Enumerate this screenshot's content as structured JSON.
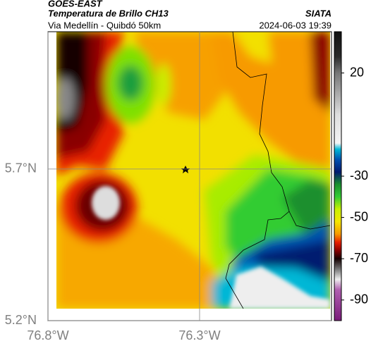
{
  "header": {
    "title": "GOES-EAST",
    "subtitle": "Temperatura de Brillo CH13",
    "region": "Via Medellín - Quibdó 50km",
    "source": "SIATA",
    "timestamp": "2024-06-03 19:39"
  },
  "map": {
    "xlim": [
      -76.8,
      -75.865
    ],
    "ylim": [
      5.2,
      6.153
    ],
    "xticks": [
      {
        "value": -76.8,
        "label": "76.8°W"
      },
      {
        "value": -76.3,
        "label": "76.3°W"
      }
    ],
    "yticks": [
      {
        "value": 5.2,
        "label": "5.2°N"
      },
      {
        "value": 5.7,
        "label": "5.7°N"
      }
    ],
    "grid": true
  },
  "colorbar": {
    "lim": [
      -100,
      40
    ],
    "ticks": [
      20,
      -30,
      -50,
      -70,
      -90
    ],
    "colors": [
      {
        "value": 40,
        "color": "#111111"
      },
      {
        "value": 28,
        "color": "#2a2a2a"
      },
      {
        "value": 20,
        "color": "#777777"
      },
      {
        "value": 0,
        "color": "#dddddd"
      },
      {
        "value": -14,
        "color": "#f4f4f4"
      },
      {
        "value": -17,
        "color": "#00b7d6"
      },
      {
        "value": -22,
        "color": "#0050b0"
      },
      {
        "value": -28,
        "color": "#001a70"
      },
      {
        "value": -34,
        "color": "#1a8f2e"
      },
      {
        "value": -40,
        "color": "#33cc33"
      },
      {
        "value": -46,
        "color": "#c8f000"
      },
      {
        "value": -52,
        "color": "#f5e600"
      },
      {
        "value": -58,
        "color": "#f79a00"
      },
      {
        "value": -62,
        "color": "#e82000"
      },
      {
        "value": -66,
        "color": "#8a0000"
      },
      {
        "value": -70,
        "color": "#150000"
      },
      {
        "value": -75,
        "color": "#777777"
      },
      {
        "value": -80,
        "color": "#eeeeee"
      },
      {
        "value": -85,
        "color": "#b060b0"
      },
      {
        "value": -100,
        "color": "#7a1a7a"
      }
    ]
  }
}
